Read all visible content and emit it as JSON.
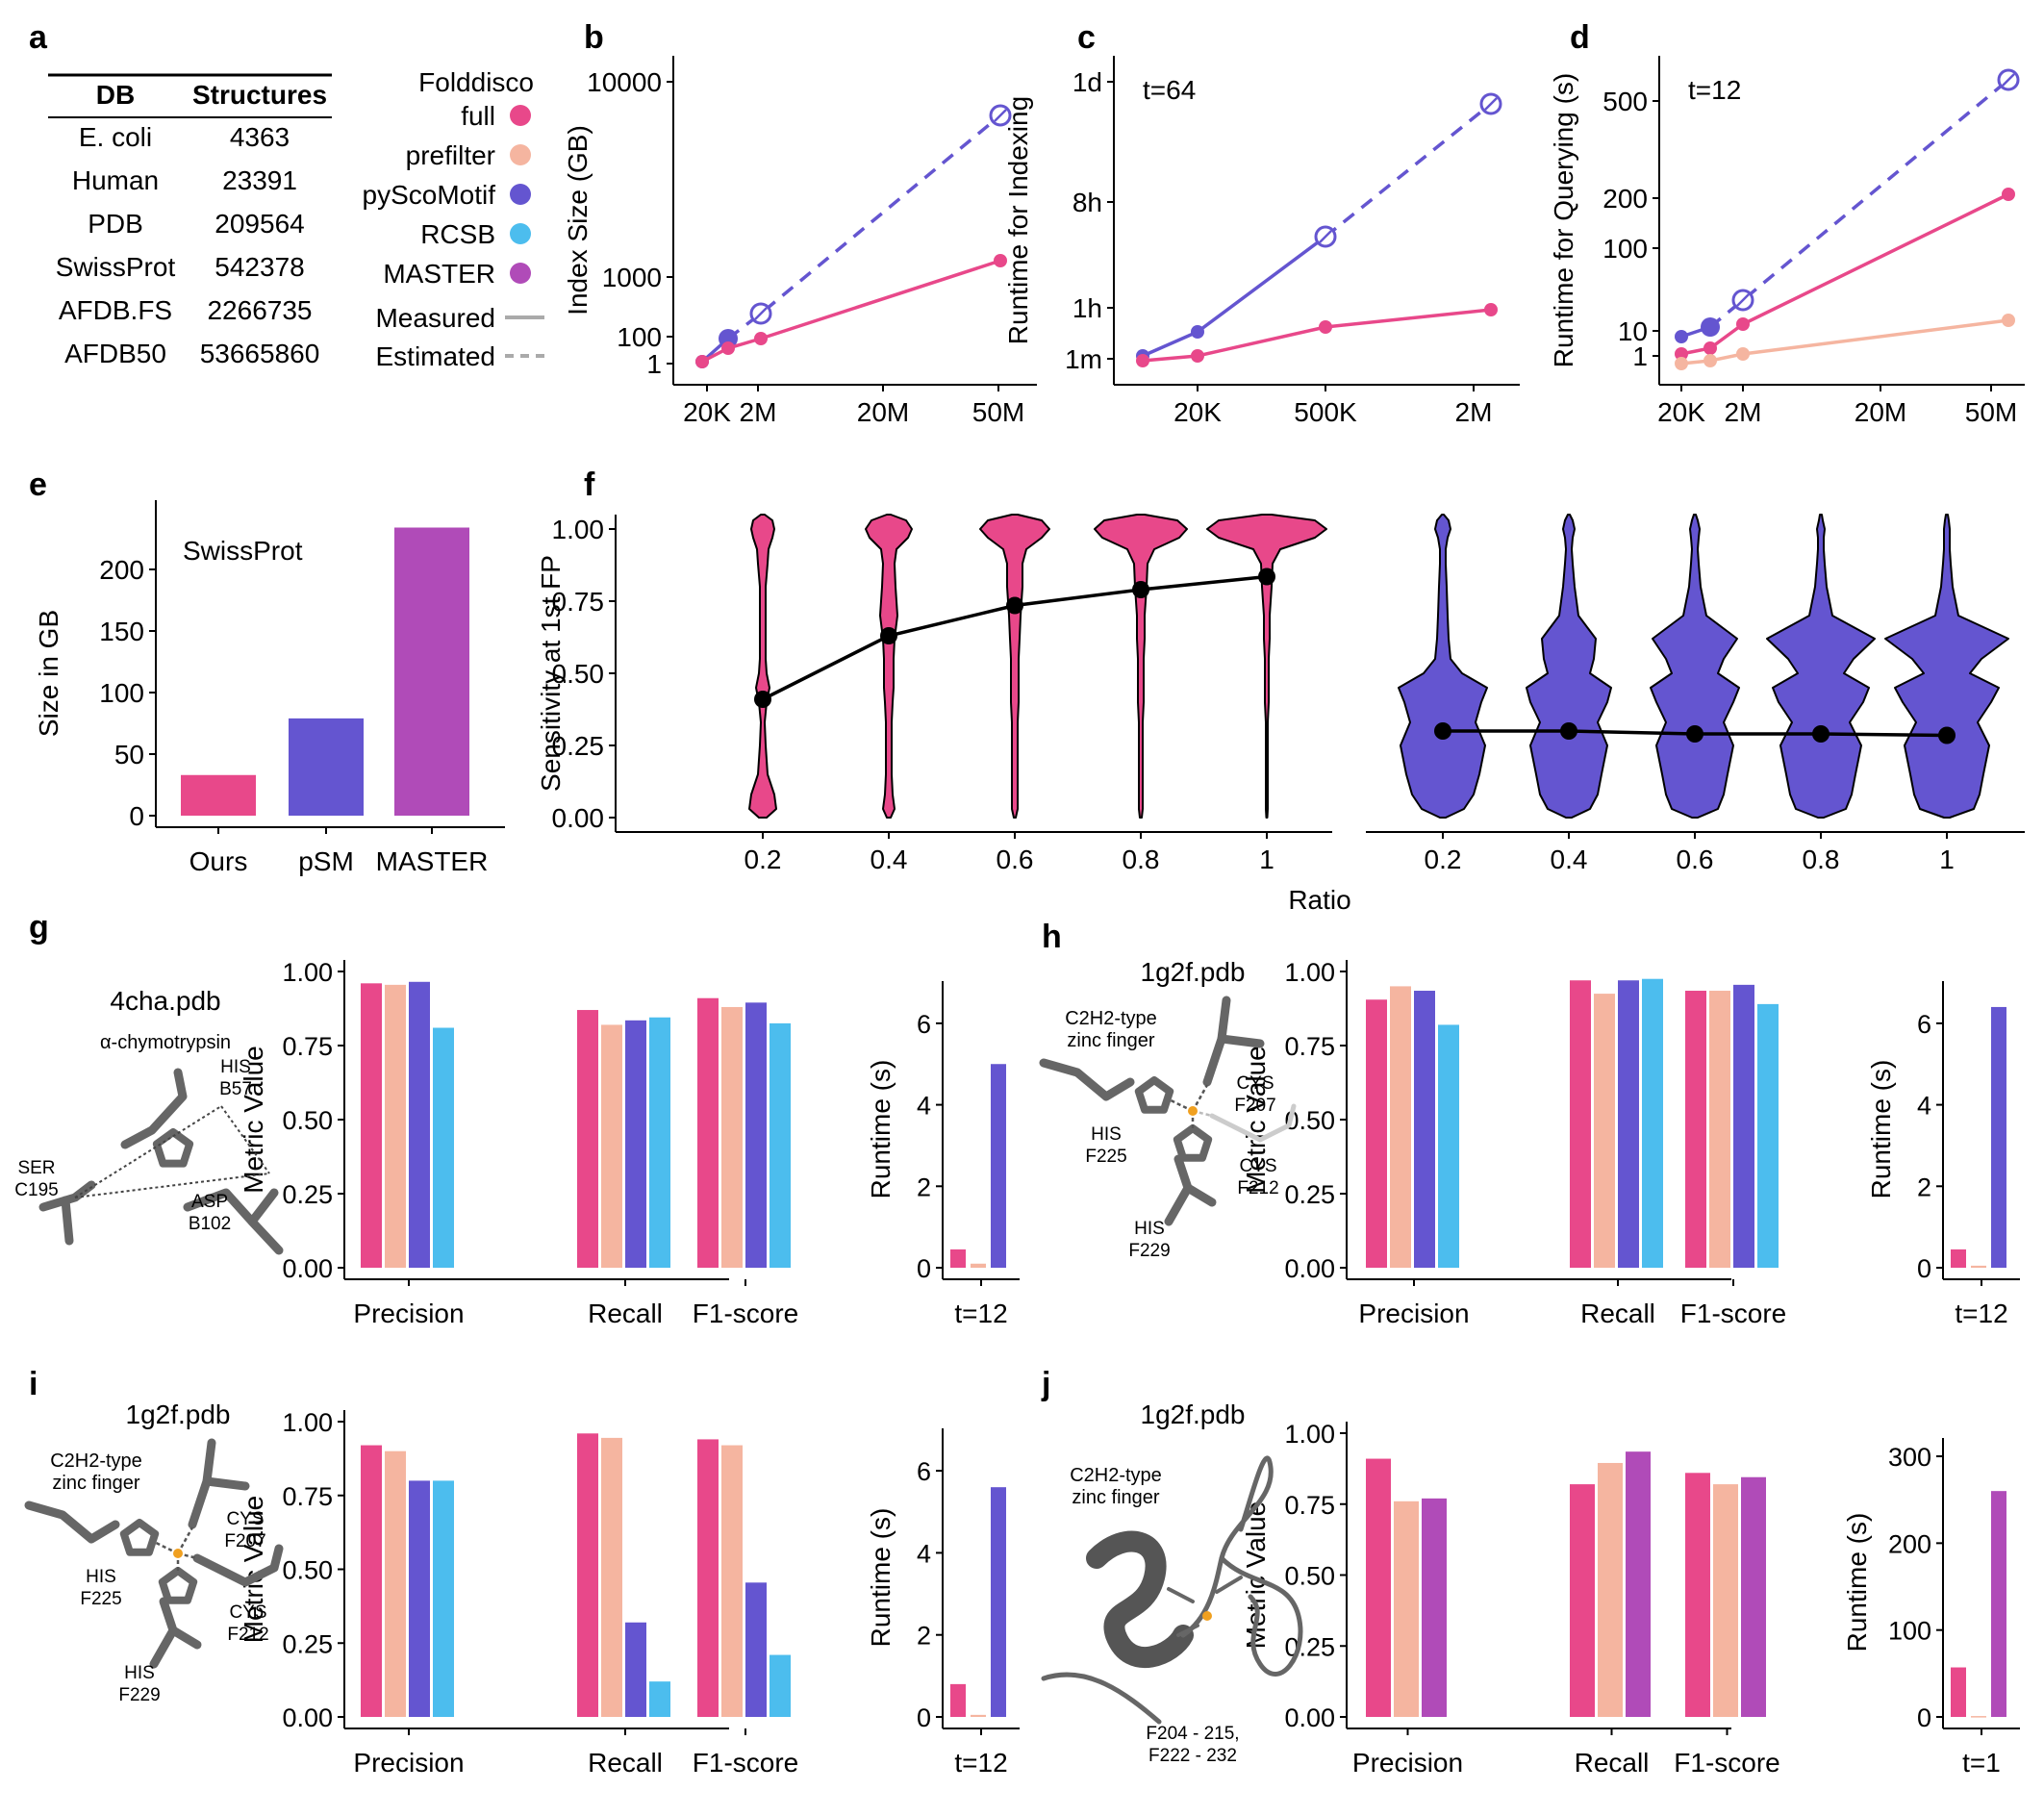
{
  "colors": {
    "full": "#e8488a",
    "prefilter": "#f5b5a0",
    "pyscomotif": "#6455d0",
    "rcsb": "#4cbdee",
    "master": "#b04bb8",
    "structure": "#666666",
    "ion": "#f0a020"
  },
  "panel_letters": [
    "a",
    "b",
    "c",
    "d",
    "e",
    "f",
    "g",
    "h",
    "i",
    "j"
  ],
  "panel_a": {
    "table_headers": [
      "DB",
      "Structures"
    ],
    "table_rows": [
      [
        "E. coli",
        "4363"
      ],
      [
        "Human",
        "23391"
      ],
      [
        "PDB",
        "209564"
      ],
      [
        "SwissProt",
        "542378"
      ],
      [
        "AFDB.FS",
        "2266735"
      ],
      [
        "AFDB50",
        "53665860"
      ]
    ],
    "legend_title": "Folddisco",
    "legend_items": [
      {
        "label": "full",
        "color": "#e8488a"
      },
      {
        "label": "prefilter",
        "color": "#f5b5a0"
      },
      {
        "label": "pyScoMotif",
        "color": "#6455d0"
      },
      {
        "label": "RCSB",
        "color": "#4cbdee"
      },
      {
        "label": "MASTER",
        "color": "#b04bb8"
      }
    ],
    "line_legend": [
      {
        "label": "Measured",
        "style": "solid"
      },
      {
        "label": "Estimated",
        "style": "dashed"
      }
    ]
  },
  "panel_b": {
    "annotation": "",
    "ylabel": "Index Size (GB)",
    "yticks": [
      "10000",
      "1000",
      "100",
      "1"
    ],
    "xticks": [
      "20K",
      "2M",
      "20M",
      "50M"
    ]
  },
  "panel_c": {
    "annotation": "t=64",
    "ylabel": "Runtime for Indexing",
    "yticks": [
      "1d",
      "8h",
      "1h",
      "1m"
    ],
    "xticks": [
      "20K",
      "500K",
      "2M"
    ]
  },
  "panel_d": {
    "annotation": "t=12",
    "ylabel": "Runtime for Querying (s)",
    "yticks": [
      "500",
      "200",
      "100",
      "10",
      "1"
    ],
    "xticks": [
      "20K",
      "2M",
      "20M",
      "50M"
    ]
  },
  "panel_e": {
    "annotation": "SwissProt",
    "ylabel": "Size in GB",
    "yticks": [
      "200",
      "150",
      "100",
      "50",
      "0"
    ]
  },
  "panel_f": {
    "ylabel": "Sensitivity at 1st FP",
    "xlabel": "Ratio",
    "yticks": [
      "1.00",
      "0.75",
      "0.50",
      "0.25",
      "0.00"
    ],
    "xticks": [
      "0.2",
      "0.4",
      "0.6",
      "0.8",
      "1"
    ]
  },
  "panel_g": {
    "pdb": "4cha.pdb",
    "protein": "α-chymotrypsin",
    "residue_labels": [
      "HIS",
      "B57",
      "SER",
      "C195",
      "ASP",
      "B102"
    ],
    "metric_ylabel": "Metric Value",
    "runtime_ylabel": "Runtime (s)",
    "runtime_xlabel": "t=12"
  },
  "panel_h": {
    "pdb": "1g2f.pdb",
    "motif": [
      "C2H2-type",
      "zinc finger"
    ],
    "residue_labels": [
      "CYS",
      "F207",
      "HIS",
      "F225",
      "CYS",
      "F212",
      "HIS",
      "F229"
    ],
    "metric_ylabel": "Metric Value",
    "runtime_ylabel": "Runtime (s)",
    "runtime_xlabel": "t=12"
  },
  "panel_i": {
    "pdb": "1g2f.pdb",
    "motif": [
      "C2H2-type",
      "zinc finger"
    ],
    "residue_labels": [
      "CYS",
      "F207",
      "HIS",
      "F225",
      "CYS",
      "F212",
      "HIS",
      "F229"
    ],
    "metric_ylabel": "Metric Value",
    "runtime_ylabel": "Runtime (s)",
    "runtime_xlabel": "t=12"
  },
  "panel_j": {
    "pdb": "1g2f.pdb",
    "motif": [
      "C2H2-type",
      "zinc finger"
    ],
    "range_label": [
      "F204 - 215,",
      "F222 - 232"
    ],
    "metric_ylabel": "Metric Value",
    "runtime_ylabel": "Runtime (s)",
    "runtime_xlabel": "t=1"
  },
  "chart_data": [
    {
      "id": "b",
      "type": "line",
      "log_scale": true,
      "xlabel": "",
      "ylabel": "Index Size (GB)",
      "x_ticks": [
        20000,
        2000000,
        20000000,
        50000000
      ],
      "y_ticks": [
        1,
        100,
        1000,
        10000
      ],
      "series": [
        {
          "name": "pyScoMotif",
          "measured": [
            [
              4363,
              1
            ],
            [
              23391,
              10
            ]
          ],
          "estimated": [
            [
              542378,
              220
            ],
            [
              53665860,
              7000
            ]
          ]
        },
        {
          "name": "full",
          "measured": [
            [
              4363,
              1
            ],
            [
              23391,
              3
            ],
            [
              542378,
              10
            ],
            [
              53665860,
              1300
            ]
          ],
          "estimated": []
        }
      ]
    },
    {
      "id": "c",
      "type": "line",
      "log_scale": true,
      "xlabel": "",
      "ylabel": "Runtime for Indexing",
      "x_ticks": [
        20000,
        500000,
        2000000
      ],
      "y_ticks": [
        "1m",
        "1h",
        "8h",
        "1d"
      ],
      "series": [
        {
          "name": "pyScoMotif",
          "measured": [
            [
              "4363",
              "1m"
            ],
            [
              "23391",
              "5m"
            ],
            [
              "542378",
              "~5h"
            ]
          ],
          "estimated": [
            [
              "542378",
              "~5h"
            ],
            [
              "2266735",
              "~1d"
            ]
          ]
        },
        {
          "name": "full",
          "measured": [
            [
              "4363",
              "<1m"
            ],
            [
              "23391",
              "1m"
            ],
            [
              "542378",
              "~25m"
            ],
            [
              "2266735",
              "~1h"
            ]
          ],
          "estimated": []
        }
      ]
    },
    {
      "id": "d",
      "type": "line",
      "log_scale": true,
      "xlabel": "",
      "ylabel": "Runtime for Querying (s)",
      "x_ticks": [
        20000,
        2000000,
        20000000,
        50000000
      ],
      "y_ticks": [
        1,
        10,
        100,
        200,
        500
      ],
      "series": [
        {
          "name": "pyScoMotif",
          "measured": [
            [
              4363,
              5
            ],
            [
              23391,
              8
            ]
          ],
          "estimated": [
            [
              542378,
              20
            ],
            [
              53665860,
              600
            ]
          ]
        },
        {
          "name": "full",
          "measured": [
            [
              4363,
              1
            ],
            [
              23391,
              2
            ],
            [
              542378,
              9
            ],
            [
              53665860,
              210
            ]
          ],
          "estimated": []
        },
        {
          "name": "prefilter",
          "measured": [
            [
              4363,
              0.3
            ],
            [
              23391,
              0.4
            ],
            [
              542378,
              1
            ],
            [
              53665860,
              11
            ]
          ],
          "estimated": []
        }
      ]
    },
    {
      "id": "e",
      "type": "bar",
      "title": "SwissProt",
      "ylabel": "Size in GB",
      "categories": [
        "Ours",
        "pSM",
        "MASTER"
      ],
      "values": [
        33,
        79,
        234
      ],
      "ylim": [
        0,
        240
      ]
    },
    {
      "id": "f",
      "type": "violin",
      "ylabel": "Sensitivity at 1st FP",
      "xlabel": "Ratio",
      "ylim": [
        0,
        1.05
      ],
      "categories": [
        "0.2",
        "0.4",
        "0.6",
        "0.8",
        "1"
      ],
      "series": [
        {
          "name": "full",
          "means": [
            0.41,
            0.63,
            0.735,
            0.79,
            0.835
          ]
        },
        {
          "name": "pyScoMotif",
          "means": [
            0.3,
            0.3,
            0.29,
            0.29,
            0.285
          ]
        }
      ]
    },
    {
      "id": "g-metrics",
      "type": "bar",
      "ylabel": "Metric Value",
      "ylim": [
        0,
        1
      ],
      "categories": [
        "Precision",
        "Recall",
        "F1-score"
      ],
      "series": [
        {
          "name": "full",
          "values": [
            0.96,
            0.87,
            0.91
          ]
        },
        {
          "name": "prefilter",
          "values": [
            0.955,
            0.82,
            0.88
          ]
        },
        {
          "name": "pyScoMotif",
          "values": [
            0.965,
            0.835,
            0.895
          ]
        },
        {
          "name": "RCSB",
          "values": [
            0.81,
            0.845,
            0.825
          ]
        }
      ]
    },
    {
      "id": "g-runtime",
      "type": "bar",
      "ylabel": "Runtime (s)",
      "xlabel": "t=12",
      "ylim": [
        0,
        6.8
      ],
      "categories": [
        "full",
        "prefilter",
        "pyScoMotif"
      ],
      "values": [
        0.45,
        0.1,
        5.0
      ]
    },
    {
      "id": "h-metrics",
      "type": "bar",
      "ylabel": "Metric Value",
      "ylim": [
        0,
        1
      ],
      "categories": [
        "Precision",
        "Recall",
        "F1-score"
      ],
      "series": [
        {
          "name": "full",
          "values": [
            0.905,
            0.97,
            0.935
          ]
        },
        {
          "name": "prefilter",
          "values": [
            0.95,
            0.925,
            0.935
          ]
        },
        {
          "name": "pyScoMotif",
          "values": [
            0.935,
            0.97,
            0.955
          ]
        },
        {
          "name": "RCSB",
          "values": [
            0.82,
            0.975,
            0.89
          ]
        }
      ]
    },
    {
      "id": "h-runtime",
      "type": "bar",
      "ylabel": "Runtime (s)",
      "xlabel": "t=12",
      "ylim": [
        0,
        6.8
      ],
      "categories": [
        "full",
        "prefilter",
        "pyScoMotif"
      ],
      "values": [
        0.45,
        0.05,
        6.4
      ]
    },
    {
      "id": "i-metrics",
      "type": "bar",
      "ylabel": "Metric Value",
      "ylim": [
        0,
        1
      ],
      "categories": [
        "Precision",
        "Recall",
        "F1-score"
      ],
      "series": [
        {
          "name": "full",
          "values": [
            0.92,
            0.96,
            0.94
          ]
        },
        {
          "name": "prefilter",
          "values": [
            0.9,
            0.945,
            0.92
          ]
        },
        {
          "name": "pyScoMotif",
          "values": [
            0.8,
            0.32,
            0.455
          ]
        },
        {
          "name": "RCSB",
          "values": [
            0.8,
            0.12,
            0.21
          ]
        }
      ]
    },
    {
      "id": "i-runtime",
      "type": "bar",
      "ylabel": "Runtime (s)",
      "xlabel": "t=12",
      "ylim": [
        0,
        6.8
      ],
      "categories": [
        "full",
        "prefilter",
        "pyScoMotif"
      ],
      "values": [
        0.8,
        0.05,
        5.6
      ]
    },
    {
      "id": "j-metrics",
      "type": "bar",
      "ylabel": "Metric Value",
      "ylim": [
        0,
        1
      ],
      "categories": [
        "Precision",
        "Recall",
        "F1-score"
      ],
      "series": [
        {
          "name": "full",
          "values": [
            0.91,
            0.82,
            0.86
          ]
        },
        {
          "name": "prefilter",
          "values": [
            0.76,
            0.895,
            0.82
          ]
        },
        {
          "name": "MASTER",
          "values": [
            0.77,
            0.935,
            0.845
          ]
        }
      ]
    },
    {
      "id": "j-runtime",
      "type": "bar",
      "ylabel": "Runtime (s)",
      "xlabel": "t=1",
      "ylim": [
        0,
        310
      ],
      "categories": [
        "full",
        "prefilter",
        "MASTER"
      ],
      "values": [
        57,
        1,
        260
      ]
    }
  ]
}
